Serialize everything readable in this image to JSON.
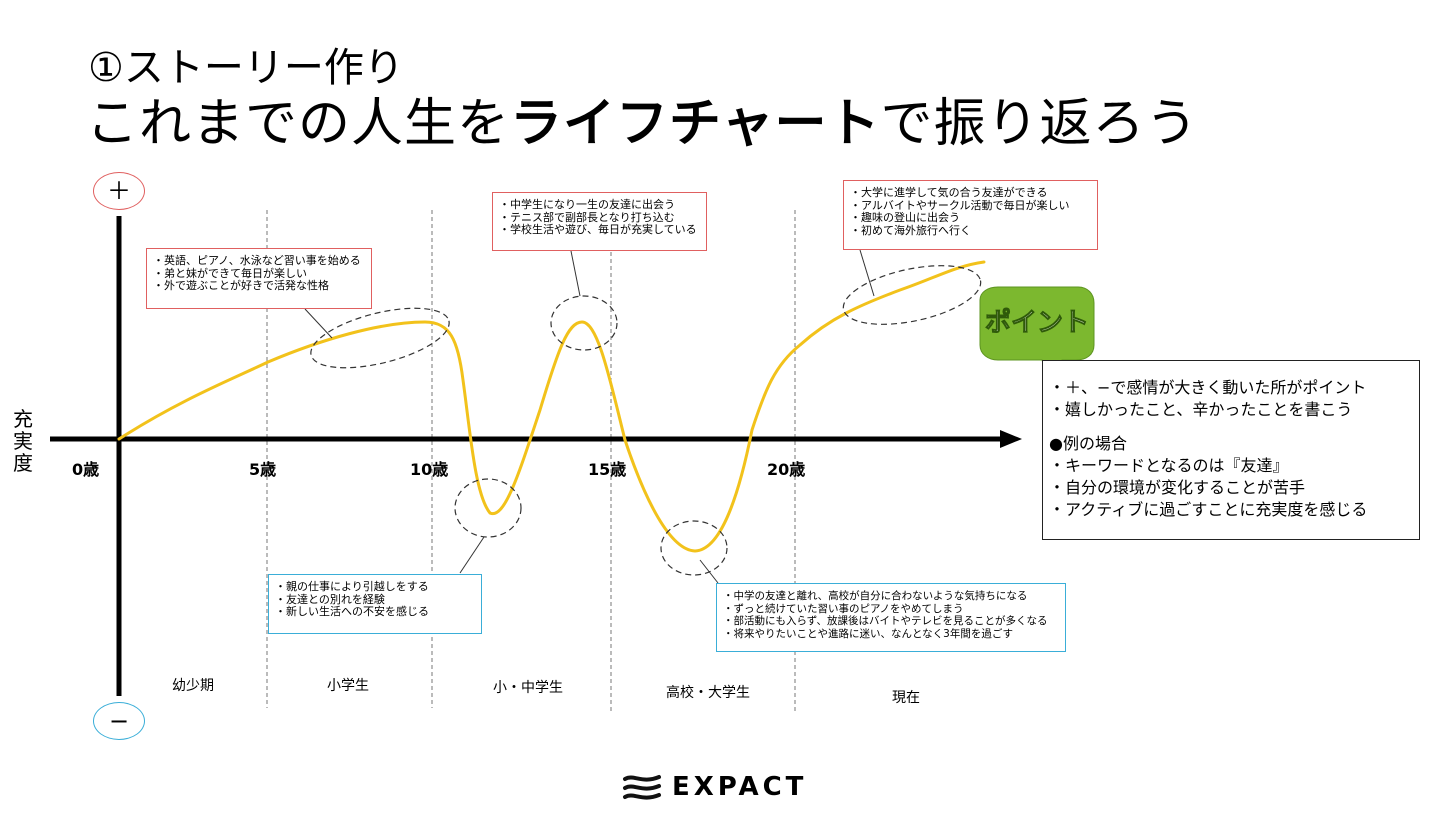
{
  "title": {
    "subtitle": "①ストーリー作り",
    "main_prefix": "これまでの人生を",
    "main_bold": "ライフチャート",
    "main_suffix": "で振り返ろう"
  },
  "axis": {
    "y_label": "充実度",
    "plus": "＋",
    "minus": "−",
    "ticks": [
      {
        "label": "0歳",
        "age": 0
      },
      {
        "label": "5歳",
        "age": 5
      },
      {
        "label": "10歳",
        "age": 10
      },
      {
        "label": "15歳",
        "age": 15
      },
      {
        "label": "20歳",
        "age": 20
      }
    ]
  },
  "stages": [
    "幼少期",
    "小学生",
    "小・中学生",
    "高校・大学生",
    "現在"
  ],
  "callouts": [
    {
      "id": "c1",
      "color": "red",
      "lines": [
        "・英語、ピアノ、水泳など習い事を始める",
        "・弟と妹ができて毎日が楽しい",
        "・外で遊ぶことが好きで活発な性格"
      ]
    },
    {
      "id": "c2",
      "color": "red",
      "lines": [
        "・中学生になり一生の友達に出会う",
        "・テニス部で副部長となり打ち込む",
        "・学校生活や遊び、毎日が充実している"
      ]
    },
    {
      "id": "c3",
      "color": "red",
      "lines": [
        "・大学に進学して気の合う友達ができる",
        "・アルバイトやサークル活動で毎日が楽しい",
        "・趣味の登山に出会う",
        "・初めて海外旅行へ行く"
      ]
    },
    {
      "id": "c4",
      "color": "blue",
      "lines": [
        "・親の仕事により引越しをする",
        "・友達との別れを経験",
        "・新しい生活への不安を感じる"
      ]
    },
    {
      "id": "c5",
      "color": "blue",
      "lines": [
        "・中学の友達と離れ、高校が自分に合わないような気持ちになる",
        "・ずっと続けていた習い事のピアノをやめてしまう",
        "・部活動にも入らず、放課後はバイトやテレビを見ることが多くなる",
        "・将来やりたいことや進路に迷い、なんとなく3年間を過ごす"
      ]
    }
  ],
  "point": {
    "badge": "ポイント",
    "lines": [
      "・＋、−で感情が大きく動いた所がポイント",
      "・嬉しかったこと、辛かったことを書こう"
    ],
    "example_title": "●例の場合",
    "example_lines": [
      "・キーワードとなるのは『友達』",
      "・自分の環境が変化することが苦手",
      "・アクティブに過ごすことに充実度を感じる"
    ]
  },
  "logo": {
    "text": "EXPACT"
  },
  "colors": {
    "curve": "#f2c21b",
    "red": "#e06060",
    "blue": "#3aaed8",
    "badge": "#7cb82f"
  }
}
